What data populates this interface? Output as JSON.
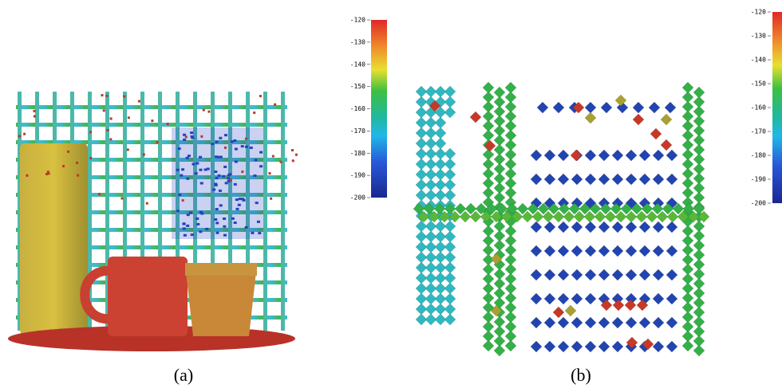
{
  "panels": [
    {
      "label": "(a)",
      "colorbar": {
        "lim": [
          -200,
          -120
        ],
        "ticks": [
          -120,
          -130,
          -140,
          -150,
          -160,
          -170,
          -180,
          -190,
          -200
        ]
      }
    },
    {
      "label": "(b)",
      "colorbar": {
        "lim": [
          -200,
          -120
        ],
        "ticks": [
          -120,
          -130,
          -140,
          -150,
          -160,
          -170,
          -180,
          -190,
          -200
        ]
      }
    }
  ]
}
